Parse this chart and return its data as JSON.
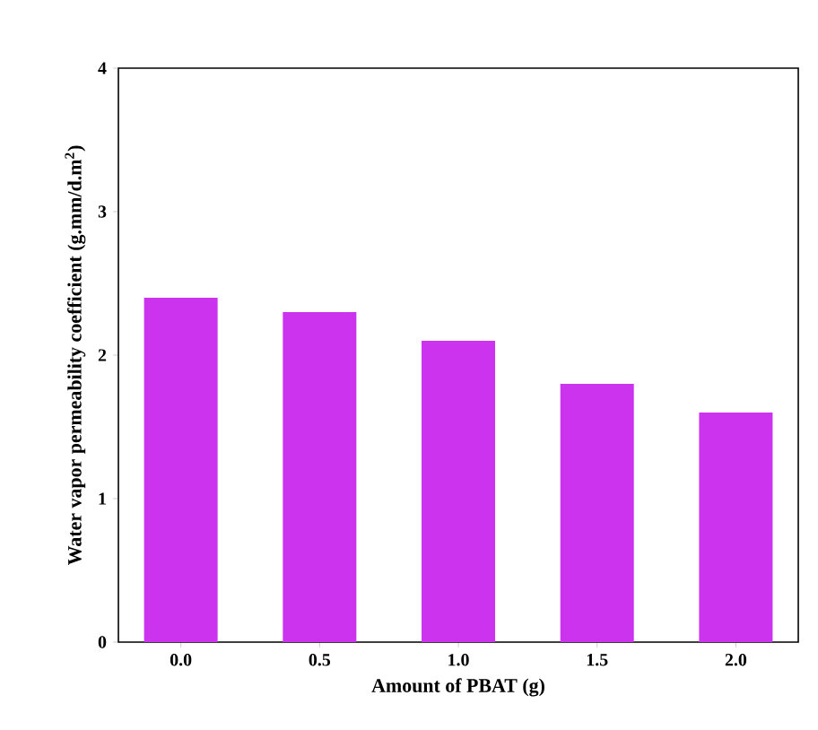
{
  "chart_data": {
    "type": "bar",
    "xlabel": "Amount of PBAT (g)",
    "ylabel": "Water vapor permeability coefficient (g.mm/d.m$^{2}$)",
    "categories": [
      "0.0",
      "0.5",
      "1.0",
      "1.5",
      "2.0"
    ],
    "values": [
      2.4,
      2.3,
      2.1,
      1.8,
      1.6
    ],
    "color": "#cc33ee",
    "ylim": [
      0,
      4
    ],
    "yticks": [
      0,
      1,
      2,
      3,
      4
    ],
    "grid": false
  }
}
